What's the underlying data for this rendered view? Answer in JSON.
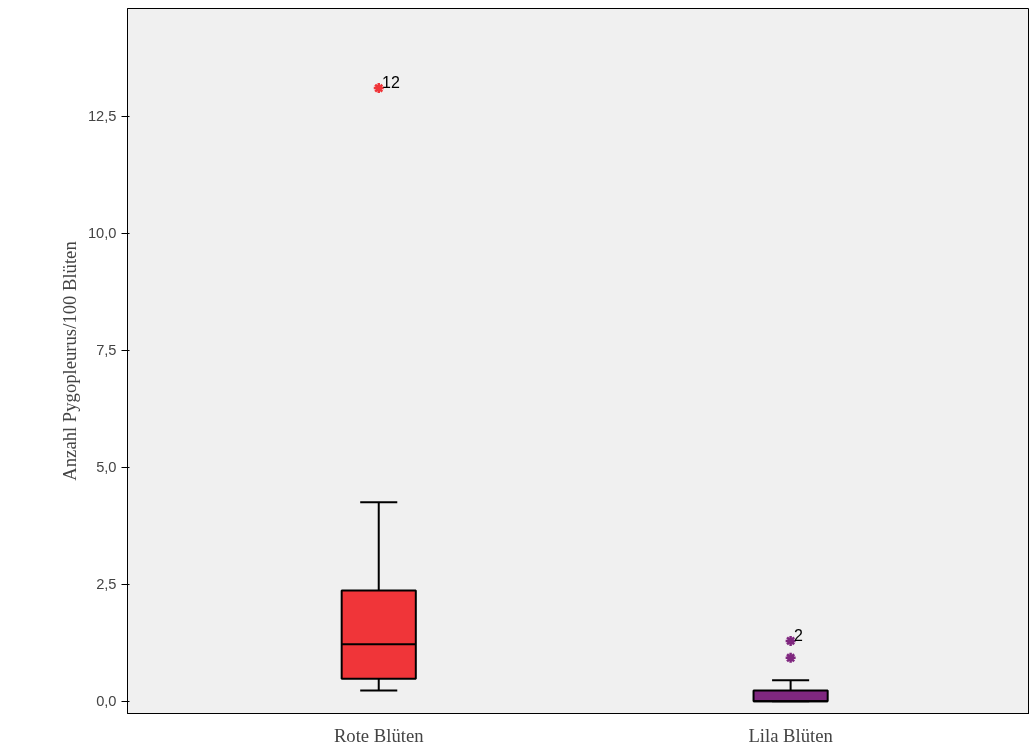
{
  "chart_data": {
    "type": "box",
    "ylabel": "Anzahl Pygopleurus/100 Blüten",
    "categories": [
      "Rote Blüten",
      "Lila Blüten"
    ],
    "boxes": [
      {
        "low": 0.23,
        "q1": 0.48,
        "median": 1.22,
        "q3": 2.37,
        "high": 4.25,
        "outliers": [
          13.1
        ]
      },
      {
        "low": 0.0,
        "q1": 0.0,
        "median": 0.0,
        "q3": 0.23,
        "high": 0.45,
        "outliers": [
          0.93,
          1.29
        ]
      }
    ],
    "colors": [
      "#f03539",
      "#7f277f"
    ],
    "ylim": [
      -0.26,
      14.8
    ],
    "yticks": [
      {
        "value": 0,
        "label": "0,0"
      },
      {
        "value": 2.5,
        "label": "2,5"
      },
      {
        "value": 5,
        "label": "5,0"
      },
      {
        "value": 7.5,
        "label": "7,5"
      },
      {
        "value": 10,
        "label": "10,0"
      },
      {
        "value": 12.5,
        "label": "12,5"
      }
    ],
    "marker": "star",
    "grid": false,
    "annotations": [
      "12",
      "2"
    ]
  }
}
